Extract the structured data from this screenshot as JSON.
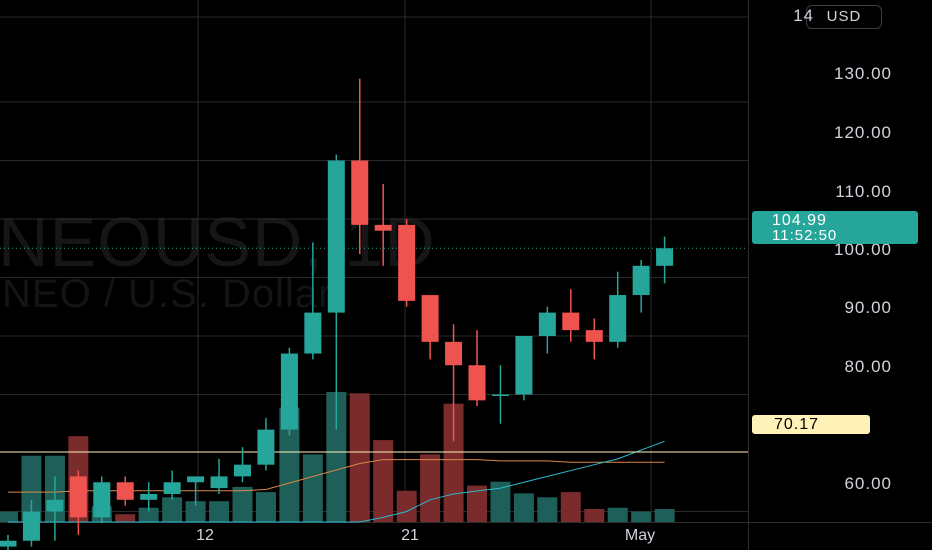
{
  "chart_data": {
    "type": "candlestick",
    "watermark": {
      "symbol": "NEOUSD, 1D",
      "description": "NEO / U.S. Dollar"
    },
    "currency": "USD",
    "ylim": [
      52,
      144
    ],
    "y_ticks": [
      "60.00",
      "80.00",
      "90.00",
      "100.00",
      "110.00",
      "120.00",
      "130.00"
    ],
    "top_tick_fragment": "14",
    "x_ticks": [
      {
        "label": "12",
        "index": 8
      },
      {
        "label": "21",
        "index": 17
      },
      {
        "label": "May",
        "index": 27
      }
    ],
    "candles": [
      {
        "o": 54,
        "h": 56,
        "l": 51,
        "c": 55
      },
      {
        "o": 55,
        "h": 62,
        "l": 54,
        "c": 60
      },
      {
        "o": 60,
        "h": 66,
        "l": 55,
        "c": 62
      },
      {
        "o": 66,
        "h": 67,
        "l": 56,
        "c": 59
      },
      {
        "o": 59,
        "h": 66,
        "l": 58,
        "c": 65
      },
      {
        "o": 65,
        "h": 66,
        "l": 61,
        "c": 62
      },
      {
        "o": 62,
        "h": 65,
        "l": 60,
        "c": 63
      },
      {
        "o": 63,
        "h": 67,
        "l": 62,
        "c": 65
      },
      {
        "o": 65,
        "h": 66,
        "l": 61,
        "c": 66
      },
      {
        "o": 64,
        "h": 69,
        "l": 63,
        "c": 66
      },
      {
        "o": 66,
        "h": 71,
        "l": 65,
        "c": 68
      },
      {
        "o": 68,
        "h": 76,
        "l": 67,
        "c": 74
      },
      {
        "o": 74,
        "h": 88,
        "l": 73,
        "c": 87
      },
      {
        "o": 87,
        "h": 106,
        "l": 86,
        "c": 94
      },
      {
        "o": 94,
        "h": 121,
        "l": 74,
        "c": 120
      },
      {
        "o": 120,
        "h": 134,
        "l": 104,
        "c": 109
      },
      {
        "o": 109,
        "h": 116,
        "l": 102,
        "c": 108
      },
      {
        "o": 109,
        "h": 110,
        "l": 95,
        "c": 96
      },
      {
        "o": 97,
        "h": 97,
        "l": 86,
        "c": 89
      },
      {
        "o": 89,
        "h": 92,
        "l": 72,
        "c": 85
      },
      {
        "o": 85,
        "h": 91,
        "l": 78,
        "c": 79
      },
      {
        "o": 80,
        "h": 85,
        "l": 75,
        "c": 80
      },
      {
        "o": 80,
        "h": 90,
        "l": 79,
        "c": 90
      },
      {
        "o": 90,
        "h": 95,
        "l": 87,
        "c": 94
      },
      {
        "o": 94,
        "h": 98,
        "l": 89,
        "c": 91
      },
      {
        "o": 91,
        "h": 93,
        "l": 86,
        "c": 89
      },
      {
        "o": 89,
        "h": 101,
        "l": 88,
        "c": 97
      },
      {
        "o": 97,
        "h": 103,
        "l": 94,
        "c": 102
      },
      {
        "o": 102,
        "h": 107,
        "l": 99,
        "c": 105
      }
    ],
    "volume": [
      0.08,
      0.51,
      0.51,
      0.66,
      0.12,
      0.06,
      0.11,
      0.19,
      0.16,
      0.16,
      0.27,
      0.23,
      0.88,
      0.52,
      1.0,
      0.99,
      0.63,
      0.24,
      0.52,
      0.91,
      0.28,
      0.31,
      0.22,
      0.19,
      0.23,
      0.1,
      0.11,
      0.08,
      0.1
    ],
    "volume_ma": [
      0.23,
      0.23,
      0.23,
      0.24,
      0.24,
      0.24,
      0.24,
      0.24,
      0.24,
      0.24,
      0.24,
      0.25,
      0.3,
      0.35,
      0.4,
      0.45,
      0.48,
      0.48,
      0.48,
      0.48,
      0.48,
      0.47,
      0.47,
      0.47,
      0.46,
      0.46,
      0.46,
      0.46,
      0.46
    ],
    "ma_line": [
      52,
      52,
      52,
      52,
      52,
      52,
      52,
      52,
      52,
      52,
      52,
      52,
      52,
      52,
      54,
      57,
      59,
      60,
      62,
      63,
      63.5,
      64,
      65,
      66,
      67,
      68,
      69,
      70.5,
      72
    ],
    "horizontal_line": {
      "value": 70.17,
      "label": "70.17",
      "color": "#fff2b8"
    },
    "last_price": {
      "value": 104.99,
      "label": "104.99",
      "countdown": "11:52:50"
    },
    "colors": {
      "up": "#26a69a",
      "down": "#ef5350",
      "vol_up": "#1f5f59",
      "vol_down": "#7a2b2b",
      "ma": "#2bbcd1",
      "vol_ma": "#d9884a",
      "grid": "#2a2a2a"
    }
  }
}
